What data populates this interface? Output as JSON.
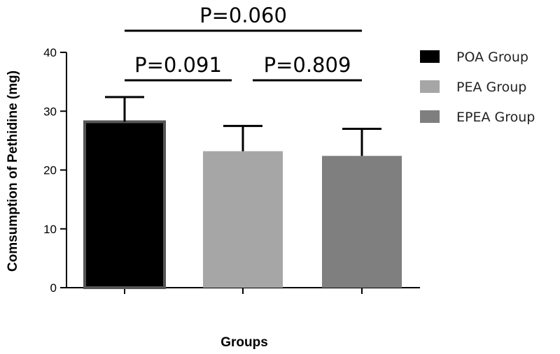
{
  "chart_data": {
    "type": "bar",
    "title": "",
    "xlabel": "Groups",
    "ylabel": "Comsumption of Pethidine (mg)",
    "ylim": [
      0,
      40
    ],
    "yticks": [
      0,
      10,
      20,
      30,
      40
    ],
    "grid": false,
    "legend_position": "right",
    "categories": [
      "POA Group",
      "PEA Group",
      "EPEA Group"
    ],
    "values": [
      28.2,
      23.2,
      22.4
    ],
    "errors": [
      4.2,
      4.3,
      4.6
    ],
    "colors": [
      "#000000",
      "#a6a6a6",
      "#7f7f7f"
    ],
    "comparisons": [
      {
        "from": 0,
        "to": 1,
        "label": "P=0.091",
        "level": 1
      },
      {
        "from": 1,
        "to": 2,
        "label": "P=0.809",
        "level": 1
      },
      {
        "from": 0,
        "to": 2,
        "label": "P=0.060",
        "level": 2
      }
    ]
  }
}
